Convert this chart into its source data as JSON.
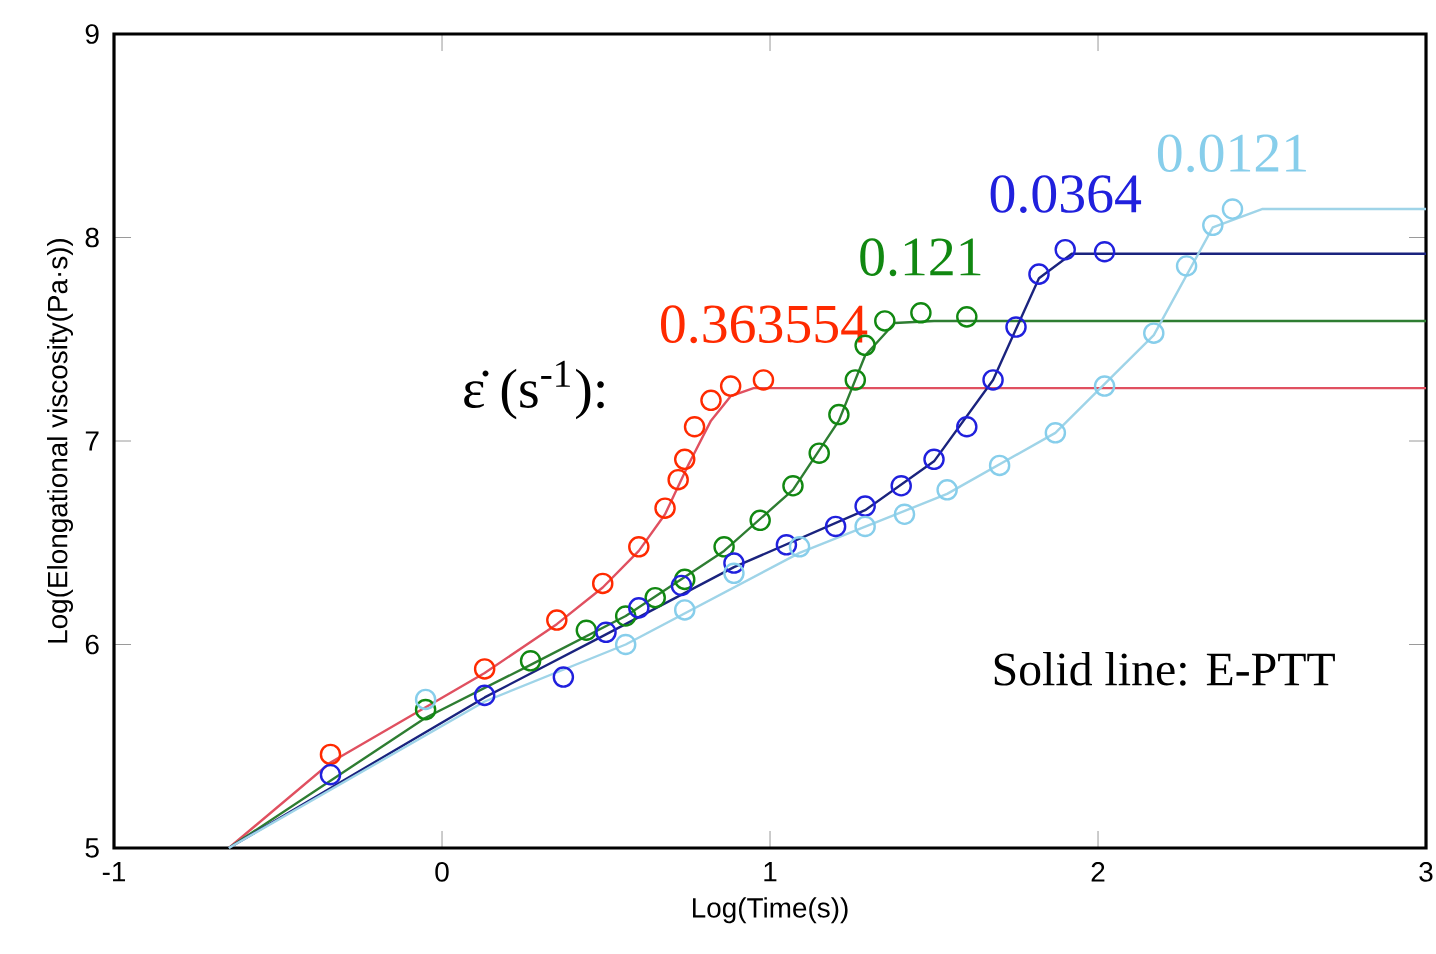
{
  "chart_data": {
    "type": "scatter",
    "xlabel": "Log(Time(s))",
    "ylabel": "Log(Elongational viscosity(Pa·s))",
    "legend_title": "ε̇ (s$^{-1}$):",
    "annotations": [
      "Solid line: E-PTT"
    ],
    "xlim": [
      -1,
      3
    ],
    "xticks": [
      -1,
      0,
      1,
      2,
      3
    ],
    "ylim": [
      5,
      9
    ],
    "yticks": [
      5,
      6,
      7,
      8,
      9
    ],
    "marker": "circle",
    "series": [
      {
        "name": "0.363554",
        "color": "#ff2a00",
        "x": [
          -0.34,
          0.13,
          0.35,
          0.49,
          0.6,
          0.68,
          0.72,
          0.74,
          0.77,
          0.82,
          0.88,
          0.98
        ],
        "values": [
          5.46,
          5.88,
          6.12,
          6.3,
          6.48,
          6.67,
          6.81,
          6.91,
          7.07,
          7.2,
          7.27,
          7.3
        ]
      },
      {
        "type": "line",
        "color": "#e05060",
        "marker": "none",
        "x": [
          -0.65,
          -0.34,
          0.13,
          0.35,
          0.49,
          0.6,
          0.68,
          0.75,
          0.82,
          0.88,
          0.95,
          3
        ],
        "values": [
          5.0,
          5.42,
          5.86,
          6.1,
          6.28,
          6.46,
          6.64,
          6.88,
          7.1,
          7.22,
          7.26,
          7.26
        ]
      },
      {
        "name": "0.121",
        "color": "#118811",
        "x": [
          -0.05,
          0.27,
          0.44,
          0.56,
          0.65,
          0.74,
          0.86,
          0.97,
          1.07,
          1.15,
          1.21,
          1.26,
          1.29,
          1.35,
          1.46,
          1.6
        ],
        "values": [
          5.68,
          5.92,
          6.07,
          6.14,
          6.23,
          6.32,
          6.48,
          6.61,
          6.78,
          6.94,
          7.13,
          7.3,
          7.47,
          7.59,
          7.63,
          7.61
        ]
      },
      {
        "type": "line",
        "color": "#2e7d32",
        "marker": "none",
        "x": [
          -0.65,
          -0.05,
          0.27,
          0.56,
          0.86,
          1.07,
          1.21,
          1.29,
          1.38,
          1.5,
          3
        ],
        "values": [
          5.0,
          5.64,
          5.9,
          6.14,
          6.46,
          6.76,
          7.1,
          7.42,
          7.58,
          7.59,
          7.59
        ]
      },
      {
        "name": "0.0364",
        "color": "#2020dd",
        "x": [
          -0.34,
          0.13,
          0.37,
          0.5,
          0.6,
          0.73,
          0.89,
          1.05,
          1.2,
          1.29,
          1.4,
          1.5,
          1.6,
          1.68,
          1.75,
          1.82,
          1.9,
          2.02
        ],
        "values": [
          5.36,
          5.75,
          5.84,
          6.06,
          6.18,
          6.29,
          6.4,
          6.49,
          6.58,
          6.68,
          6.78,
          6.91,
          7.07,
          7.3,
          7.56,
          7.82,
          7.94,
          7.93
        ]
      },
      {
        "type": "line",
        "color": "#1a237e",
        "marker": "none",
        "x": [
          -0.65,
          0.13,
          0.5,
          0.89,
          1.29,
          1.5,
          1.68,
          1.82,
          1.92,
          3
        ],
        "values": [
          5.0,
          5.74,
          6.05,
          6.38,
          6.66,
          6.9,
          7.3,
          7.8,
          7.92,
          7.92
        ]
      },
      {
        "name": "0.0121",
        "color": "#87ceeb",
        "x": [
          -0.05,
          0.56,
          0.74,
          0.89,
          1.09,
          1.29,
          1.41,
          1.54,
          1.7,
          1.87,
          2.02,
          2.17,
          2.27,
          2.35,
          2.41
        ],
        "values": [
          5.73,
          6.0,
          6.17,
          6.35,
          6.48,
          6.58,
          6.64,
          6.76,
          6.88,
          7.04,
          7.27,
          7.53,
          7.86,
          8.06,
          8.14
        ]
      },
      {
        "type": "line",
        "color": "#9fd4e8",
        "marker": "none",
        "x": [
          -0.65,
          0.13,
          0.56,
          1.09,
          1.54,
          1.87,
          2.17,
          2.35,
          2.5,
          3
        ],
        "values": [
          5.0,
          5.72,
          6.0,
          6.45,
          6.74,
          7.04,
          7.52,
          8.05,
          8.14,
          8.14
        ]
      }
    ]
  }
}
